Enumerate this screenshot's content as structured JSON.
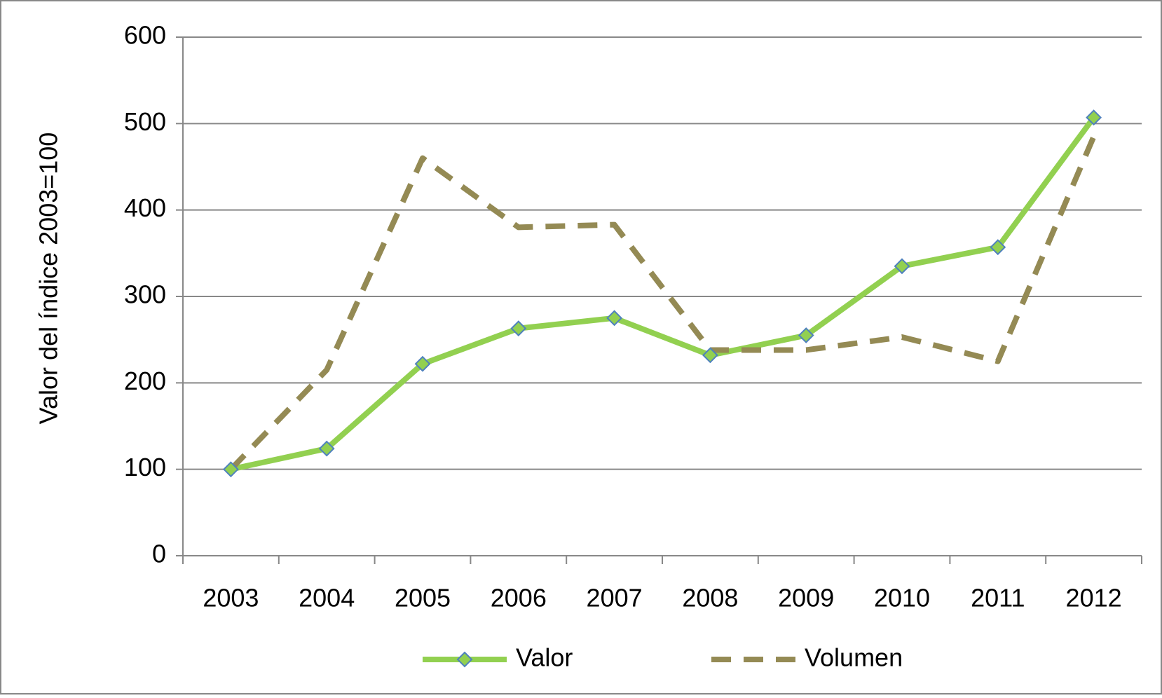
{
  "chart_data": {
    "type": "line",
    "y_label": "Valor del índice 2003=100",
    "categories": [
      "2003",
      "2004",
      "2005",
      "2006",
      "2007",
      "2008",
      "2009",
      "2010",
      "2011",
      "2012"
    ],
    "series": [
      {
        "name": "Valor",
        "color": "#92d050",
        "values": [
          100,
          124,
          222,
          263,
          275,
          232,
          255,
          335,
          357,
          507
        ]
      },
      {
        "name": "Volumen",
        "color": "#948a54",
        "values": [
          100,
          215,
          460,
          380,
          383,
          238,
          238,
          253,
          225,
          485
        ]
      }
    ],
    "ylim": [
      0,
      600
    ],
    "yticks": [
      0,
      100,
      200,
      300,
      400,
      500,
      600
    ],
    "grid": true,
    "legend": "bottom"
  }
}
